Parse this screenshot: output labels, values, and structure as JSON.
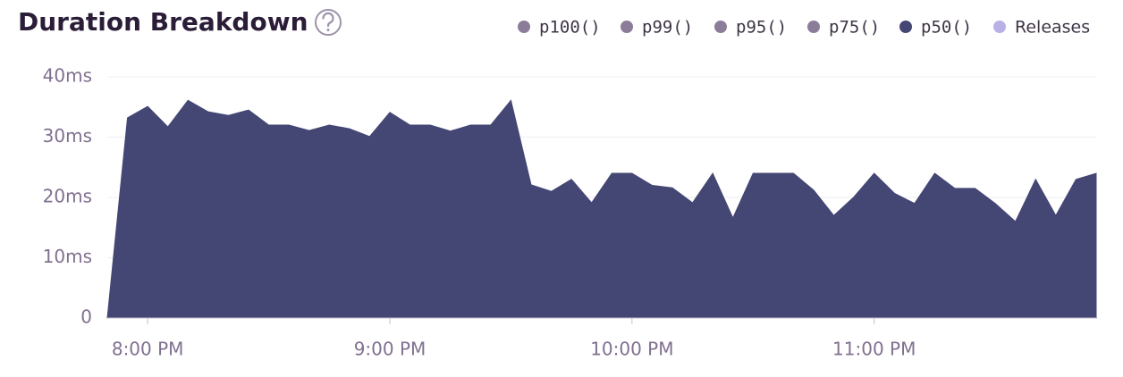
{
  "chart_data": {
    "type": "area",
    "title": "Duration Breakdown",
    "legend": [
      {
        "name": "p100()",
        "color": "#8b7d99"
      },
      {
        "name": "p99()",
        "color": "#8b7d99"
      },
      {
        "name": "p95()",
        "color": "#8b7d99"
      },
      {
        "name": "p75()",
        "color": "#8b7d99"
      },
      {
        "name": "p50()",
        "color": "#444674"
      },
      {
        "name": "Releases",
        "color": "#b9b0e6"
      }
    ],
    "x": [
      "7:50 PM",
      "7:55 PM",
      "8:00 PM",
      "8:05 PM",
      "8:10 PM",
      "8:15 PM",
      "8:20 PM",
      "8:25 PM",
      "8:30 PM",
      "8:35 PM",
      "8:40 PM",
      "8:45 PM",
      "8:50 PM",
      "8:55 PM",
      "9:00 PM",
      "9:05 PM",
      "9:10 PM",
      "9:15 PM",
      "9:20 PM",
      "9:25 PM",
      "9:30 PM",
      "9:35 PM",
      "9:40 PM",
      "9:45 PM",
      "9:50 PM",
      "9:55 PM",
      "10:00 PM",
      "10:05 PM",
      "10:10 PM",
      "10:15 PM",
      "10:20 PM",
      "10:25 PM",
      "10:30 PM",
      "10:35 PM",
      "10:40 PM",
      "10:45 PM",
      "10:50 PM",
      "10:55 PM",
      "11:00 PM",
      "11:05 PM",
      "11:10 PM",
      "11:15 PM",
      "11:20 PM",
      "11:25 PM",
      "11:30 PM",
      "11:35 PM",
      "11:40 PM",
      "11:45 PM",
      "11:50 PM",
      "11:55 PM"
    ],
    "series": [
      {
        "name": "p50()",
        "color": "#444674",
        "values": [
          0,
          33.2,
          35.1,
          31.7,
          36.1,
          34.2,
          33.6,
          34.5,
          32,
          32,
          31.1,
          32,
          31.4,
          30.1,
          34.1,
          32,
          32,
          31,
          32,
          32,
          36.1,
          22.1,
          21,
          23,
          19.1,
          24,
          24,
          22,
          21.6,
          19.1,
          24,
          16.6,
          24,
          24,
          24,
          21.2,
          17,
          20.1,
          24,
          20.7,
          19,
          24,
          21.5,
          21.5,
          19,
          16,
          23,
          17,
          23,
          24
        ]
      }
    ],
    "xlim": [
      "7:50 PM",
      "11:55 PM"
    ],
    "xticks": [
      "8:00 PM",
      "9:00 PM",
      "10:00 PM",
      "11:00 PM"
    ],
    "ylim": [
      0,
      40
    ],
    "yticks": [
      0,
      {
        "value": 10,
        "label": "10ms"
      },
      {
        "value": 20,
        "label": "20ms"
      },
      {
        "value": 30,
        "label": "30ms"
      },
      {
        "value": 40,
        "label": "40ms"
      }
    ],
    "grid": true
  }
}
